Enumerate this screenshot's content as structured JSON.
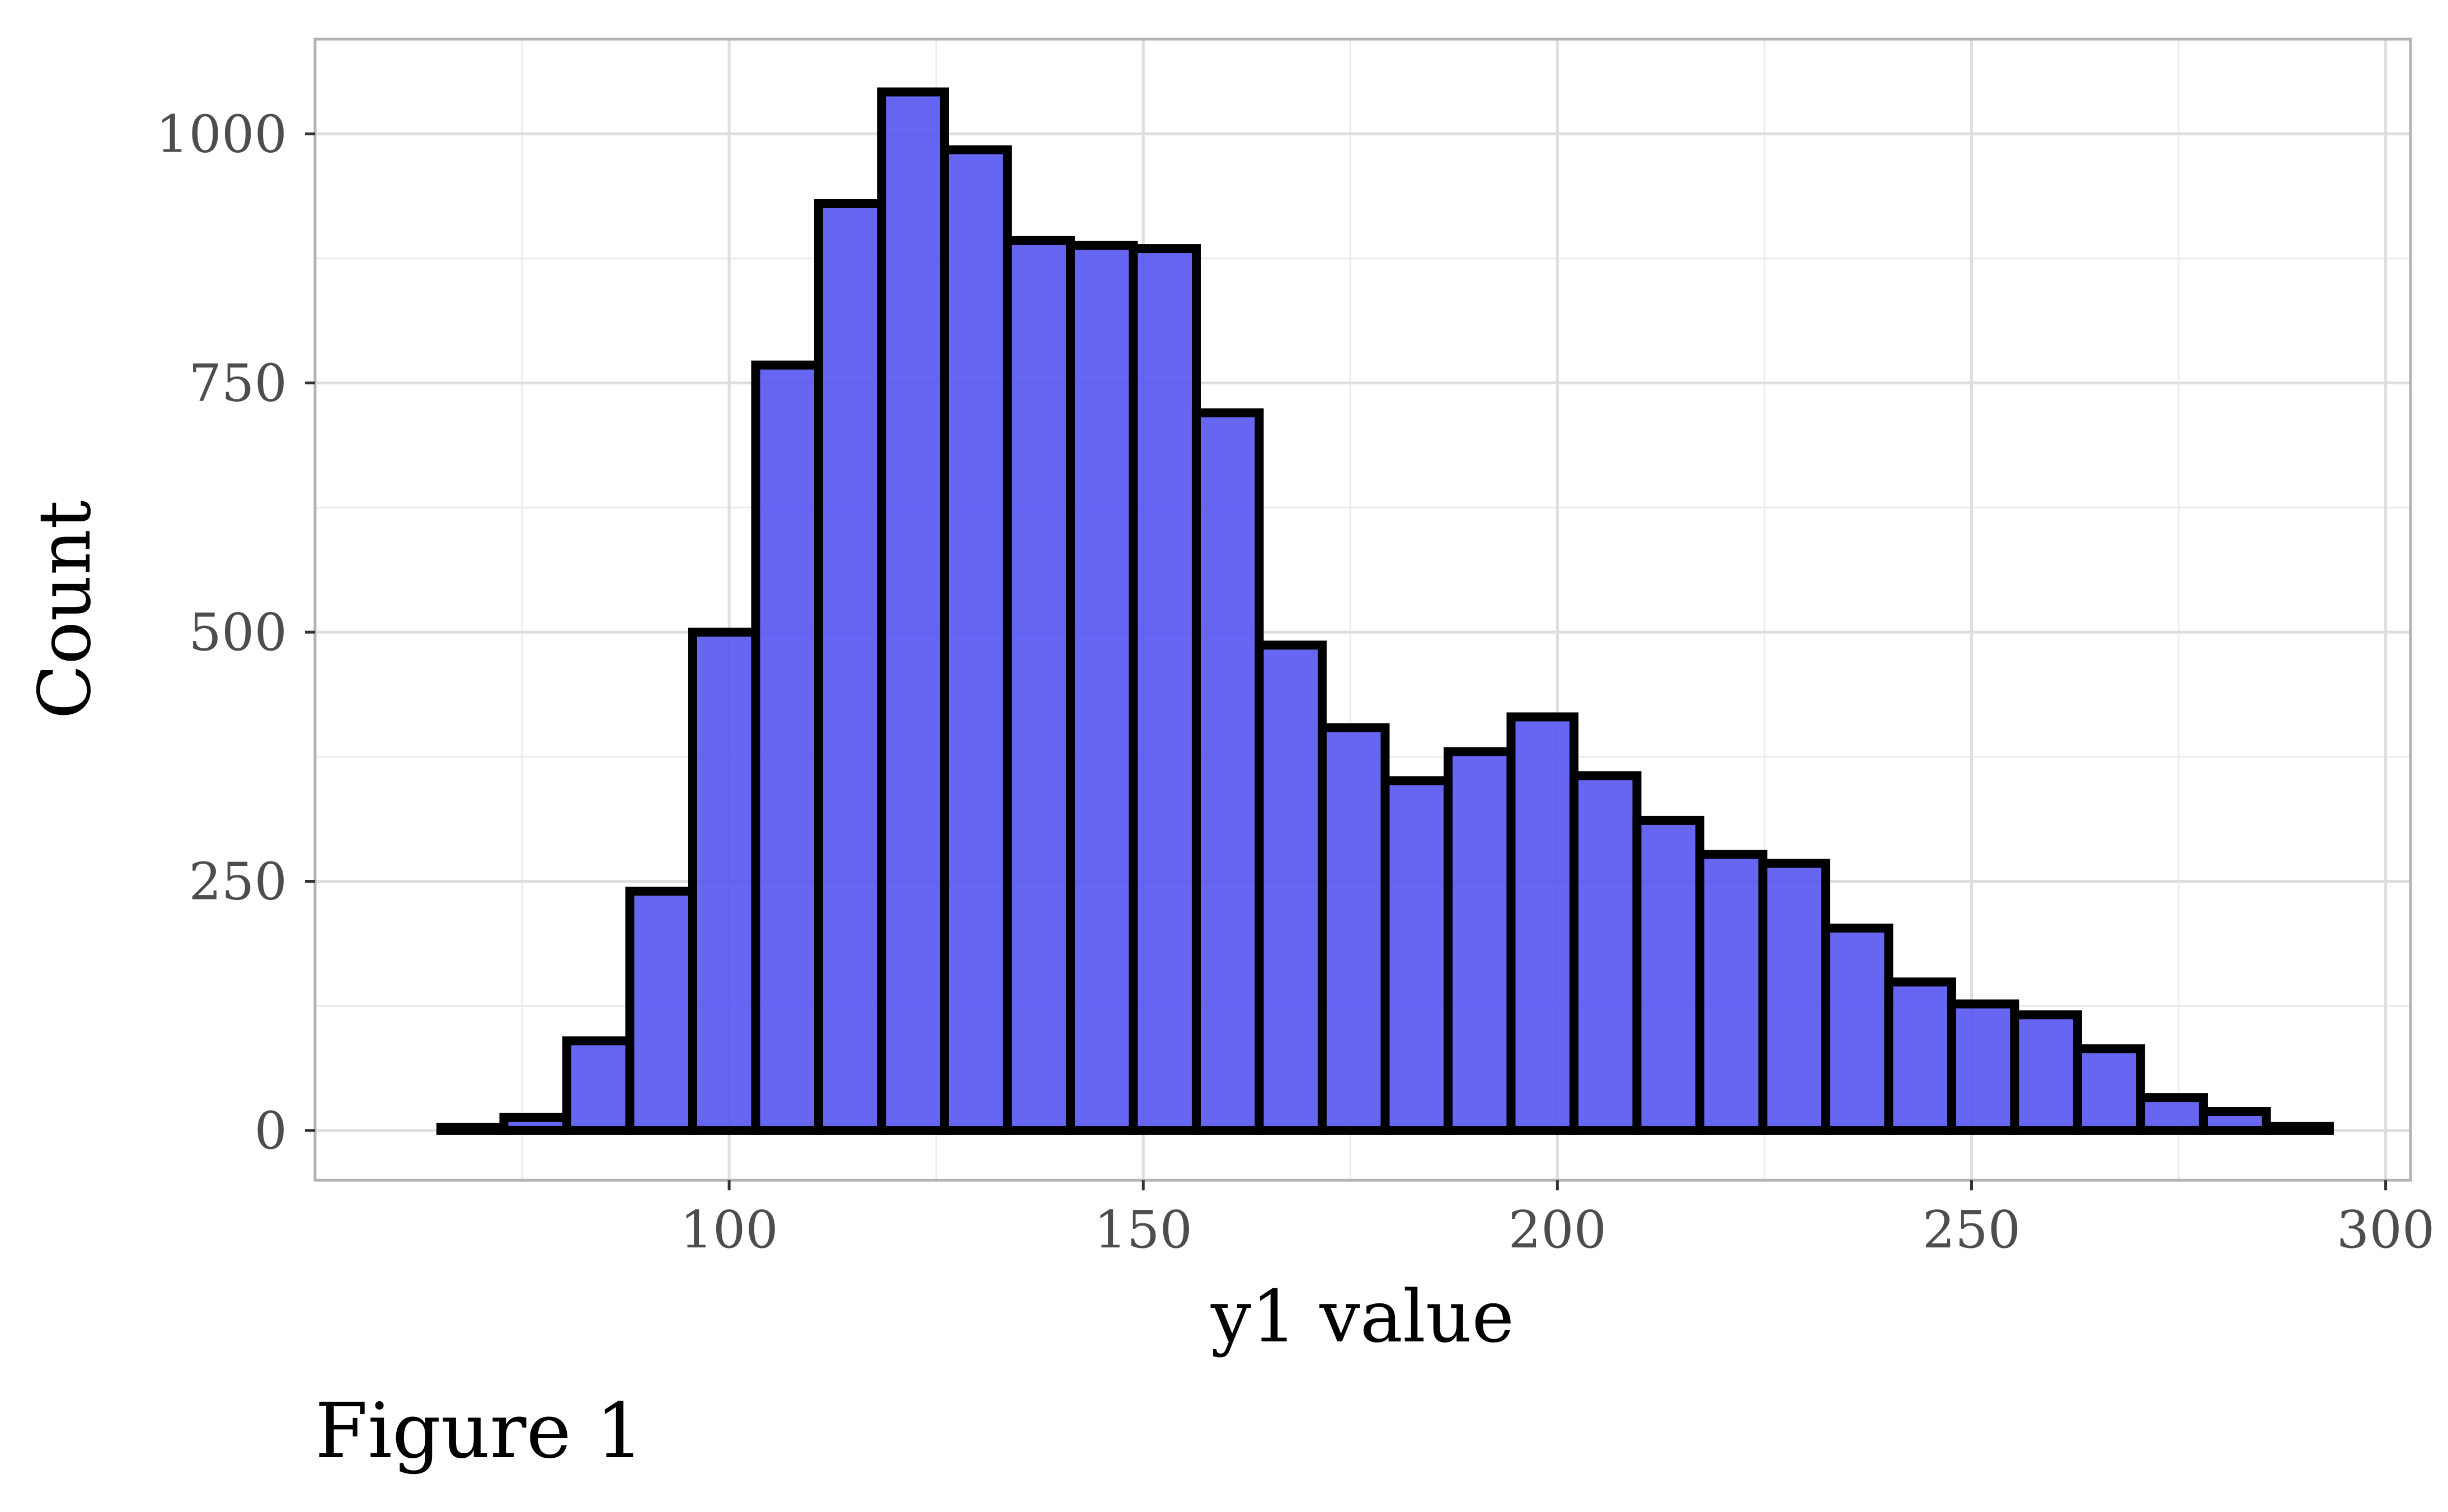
{
  "chart_data": {
    "type": "bar",
    "xlabel": "y1 value",
    "ylabel": "Count",
    "caption": "Figure 1",
    "bin_width": 7.6,
    "bin_starts": [
      65.2,
      72.8,
      80.4,
      88.0,
      95.6,
      103.2,
      110.8,
      118.4,
      126.0,
      133.6,
      141.2,
      148.8,
      156.4,
      164.0,
      171.6,
      179.2,
      186.8,
      194.4,
      202.0,
      209.6,
      217.2,
      224.8,
      232.4,
      240.0,
      247.6,
      255.2,
      262.8,
      270.4,
      278.0,
      285.6
    ],
    "values": [
      3,
      13,
      90,
      240,
      500,
      768,
      930,
      1042,
      984,
      893,
      888,
      885,
      720,
      487,
      404,
      351,
      380,
      415,
      356,
      311,
      277,
      268,
      203,
      149,
      127,
      116,
      82,
      33,
      19,
      4
    ],
    "xlim": [
      50,
      303
    ],
    "ylim": [
      -50,
      1095
    ],
    "x_ticks": [
      100,
      150,
      200,
      250,
      300
    ],
    "y_ticks": [
      0,
      250,
      500,
      750,
      1000
    ],
    "x_tick_labels": [
      "100",
      "150",
      "200",
      "250",
      "300"
    ],
    "y_tick_labels": [
      "0",
      "250",
      "500",
      "750",
      "1000"
    ],
    "grid": true,
    "fill_color": "#5555f2",
    "edge_color": "#000000"
  }
}
